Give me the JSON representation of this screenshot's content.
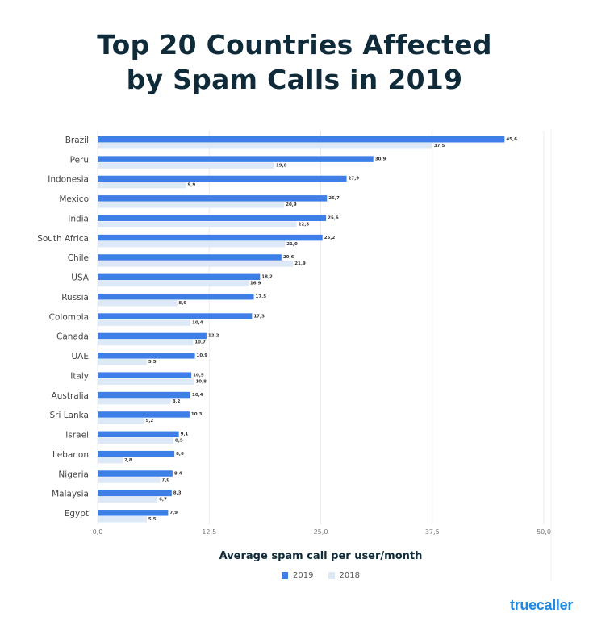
{
  "title_line1": "Top 20 Countries Affected",
  "title_line2": "by Spam Calls in 2019",
  "brand": "truecaller",
  "chart_data": {
    "type": "bar",
    "orientation": "horizontal",
    "title": "Top 20 Countries Affected by Spam Calls in 2019",
    "xlabel": "Average spam call per user/month",
    "ylabel": "",
    "xlim": [
      0,
      50
    ],
    "xticks": [
      "0,0",
      "12,5",
      "25,0",
      "37,5",
      "50,0"
    ],
    "xtick_values": [
      0,
      12.5,
      25,
      37.5,
      50
    ],
    "grid": true,
    "legend_position": "bottom",
    "categories": [
      "Brazil",
      "Peru",
      "Indonesia",
      "Mexico",
      "India",
      "South Africa",
      "Chile",
      "USA",
      "Russia",
      "Colombia",
      "Canada",
      "UAE",
      "Italy",
      "Australia",
      "Sri Lanka",
      "Israel",
      "Lebanon",
      "Nigeria",
      "Malaysia",
      "Egypt"
    ],
    "series": [
      {
        "name": "2019",
        "color": "#3d7fe6",
        "values": [
          45.6,
          30.9,
          27.9,
          25.7,
          25.6,
          25.2,
          20.6,
          18.2,
          17.5,
          17.3,
          12.2,
          10.9,
          10.5,
          10.4,
          10.3,
          9.1,
          8.6,
          8.4,
          8.3,
          7.9
        ],
        "labels": [
          "45,6",
          "30,9",
          "27,9",
          "25,7",
          "25,6",
          "25,2",
          "20,6",
          "18,2",
          "17,5",
          "17,3",
          "12,2",
          "10,9",
          "10,5",
          "10,4",
          "10,3",
          "9,1",
          "8,6",
          "8,4",
          "8,3",
          "7,9"
        ]
      },
      {
        "name": "2018",
        "color": "#dde9f7",
        "values": [
          37.5,
          19.8,
          9.9,
          20.9,
          22.3,
          21.0,
          21.9,
          16.9,
          8.9,
          10.4,
          10.7,
          5.5,
          10.8,
          8.2,
          5.2,
          8.5,
          2.8,
          7.0,
          6.7,
          5.5
        ],
        "labels": [
          "37,5",
          "19,8",
          "9,9",
          "20,9",
          "22,3",
          "21,0",
          "21,9",
          "16,9",
          "8,9",
          "10,4",
          "10,7",
          "5,5",
          "10,8",
          "8,2",
          "5,2",
          "8,5",
          "2,8",
          "7,0",
          "6,7",
          "5,5"
        ]
      }
    ]
  }
}
